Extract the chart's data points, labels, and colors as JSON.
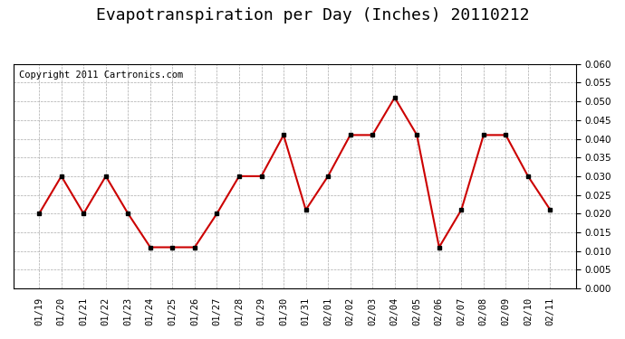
{
  "title": "Evapotranspiration per Day (Inches) 20110212",
  "copyright_text": "Copyright 2011 Cartronics.com",
  "labels": [
    "01/19",
    "01/20",
    "01/21",
    "01/22",
    "01/23",
    "01/24",
    "01/25",
    "01/26",
    "01/27",
    "01/28",
    "01/29",
    "01/30",
    "01/31",
    "02/01",
    "02/02",
    "02/03",
    "02/04",
    "02/05",
    "02/06",
    "02/07",
    "02/08",
    "02/09",
    "02/10",
    "02/11"
  ],
  "values": [
    0.02,
    0.03,
    0.02,
    0.03,
    0.02,
    0.011,
    0.011,
    0.011,
    0.02,
    0.03,
    0.03,
    0.041,
    0.021,
    0.03,
    0.041,
    0.041,
    0.051,
    0.041,
    0.011,
    0.021,
    0.041,
    0.041,
    0.03,
    0.021
  ],
  "line_color": "#cc0000",
  "marker_color": "#000000",
  "background_color": "#ffffff",
  "plot_bg_color": "#ffffff",
  "grid_color": "#aaaaaa",
  "ylim": [
    0.0,
    0.06
  ],
  "ytick_step": 0.005,
  "title_fontsize": 13,
  "copyright_fontsize": 7.5,
  "tick_fontsize": 7.5
}
